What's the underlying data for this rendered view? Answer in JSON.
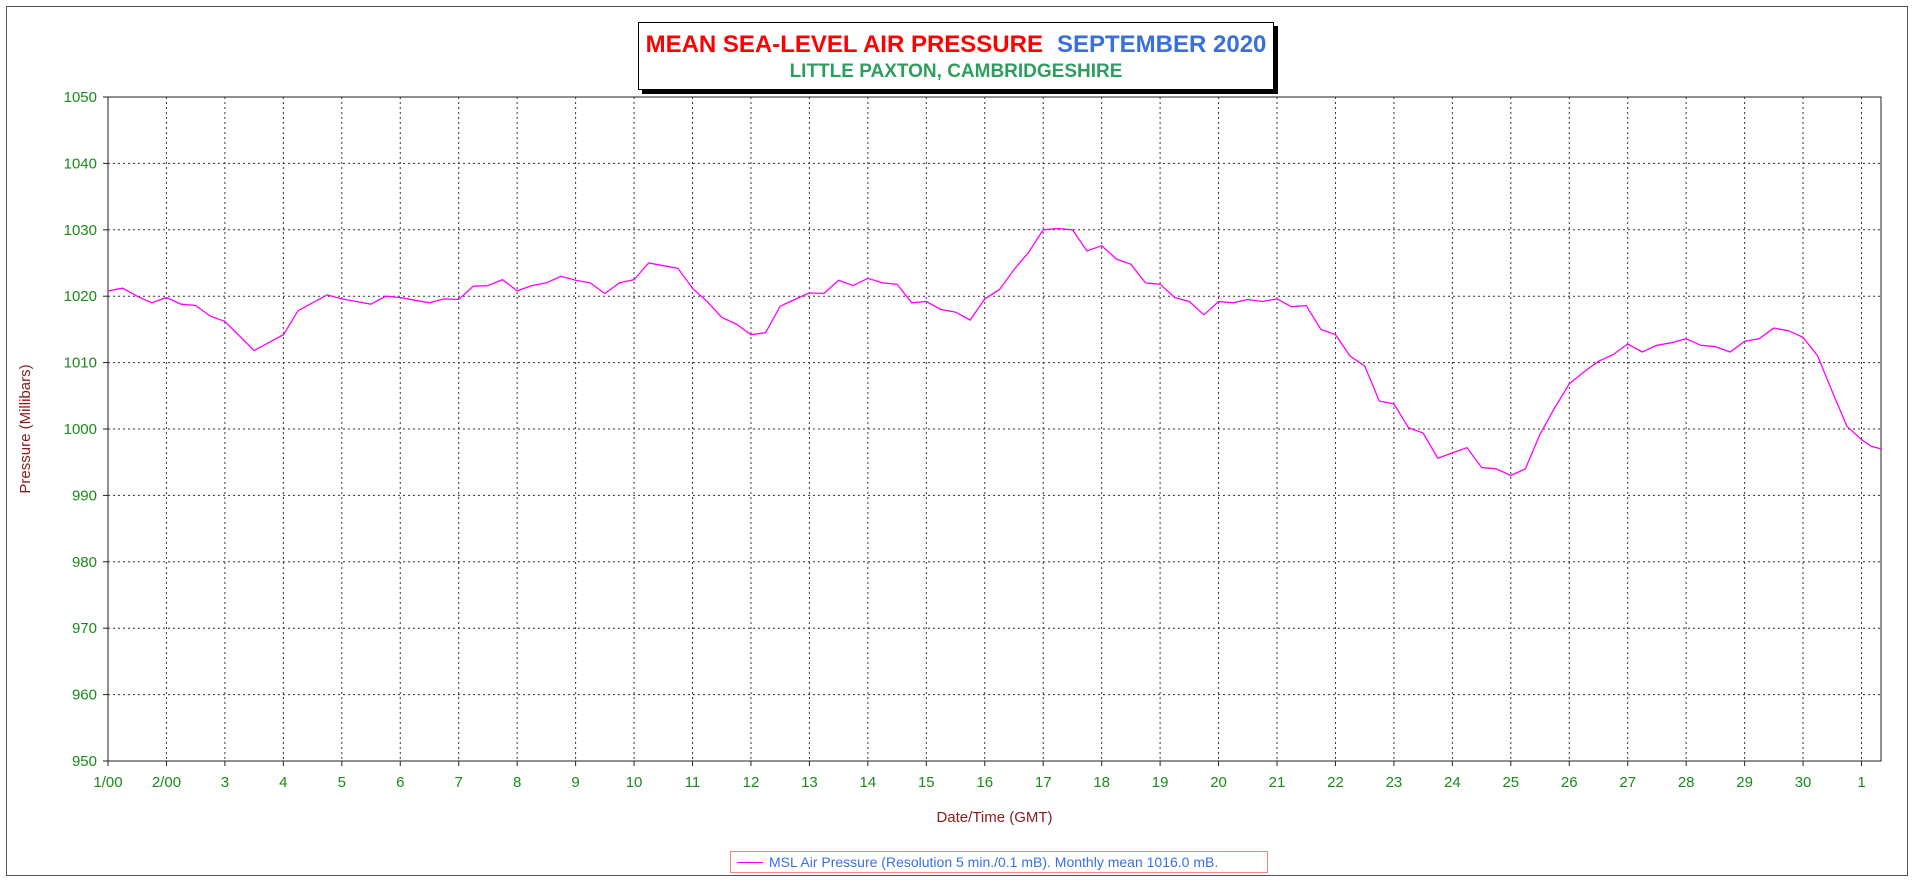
{
  "title": {
    "main": "MEAN SEA-LEVEL AIR PRESSURE",
    "month": "SEPTEMBER 2020",
    "location": "LITTLE PAXTON, CAMBRIDGESHIRE"
  },
  "legend": {
    "label": "MSL Air Pressure (Resolution 5 min./0.1 mB). Monthly mean 1016.0 mB."
  },
  "colors": {
    "line": "#ff00ff",
    "grid": "#333333",
    "tick_text": "#1a8a1a",
    "axis_title": "#8b1a1a",
    "title_red": "#ff0000",
    "title_blue": "#3a6fe0",
    "title_green": "#2e9e5e"
  },
  "chart_data": {
    "type": "line",
    "title": "MEAN SEA-LEVEL AIR PRESSURE SEPTEMBER 2020",
    "subtitle": "LITTLE PAXTON, CAMBRIDGESHIRE",
    "xlabel": "Date/Time (GMT)",
    "ylabel": "Pressure (Millibars)",
    "ylim": [
      950,
      1050
    ],
    "yticks": [
      950,
      960,
      970,
      980,
      990,
      1000,
      1010,
      1020,
      1030,
      1040,
      1050
    ],
    "xlim": [
      "2020-09-01 00:00",
      "2020-10-01 08:00"
    ],
    "xtick_labels": [
      "1/00",
      "2/00",
      "3",
      "4",
      "5",
      "6",
      "7",
      "8",
      "9",
      "10",
      "11",
      "12",
      "13",
      "14",
      "15",
      "16",
      "17",
      "18",
      "19",
      "20",
      "21",
      "22",
      "23",
      "24",
      "25",
      "26",
      "27",
      "28",
      "29",
      "30",
      "1"
    ],
    "grid": true,
    "legend_position": "bottom-center",
    "series": [
      {
        "name": "MSL Air Pressure (Resolution 5 min./0.1 mB). Monthly mean 1016.0 mB.",
        "x": [
          "2020-09-01 00:00",
          "2020-09-01 06:00",
          "2020-09-01 12:00",
          "2020-09-01 18:00",
          "2020-09-02 00:00",
          "2020-09-02 06:00",
          "2020-09-02 12:00",
          "2020-09-02 18:00",
          "2020-09-03 00:00",
          "2020-09-03 06:00",
          "2020-09-03 12:00",
          "2020-09-03 18:00",
          "2020-09-04 00:00",
          "2020-09-04 06:00",
          "2020-09-04 12:00",
          "2020-09-04 18:00",
          "2020-09-05 00:00",
          "2020-09-05 06:00",
          "2020-09-05 12:00",
          "2020-09-05 18:00",
          "2020-09-06 00:00",
          "2020-09-06 06:00",
          "2020-09-06 12:00",
          "2020-09-06 18:00",
          "2020-09-07 00:00",
          "2020-09-07 06:00",
          "2020-09-07 12:00",
          "2020-09-07 18:00",
          "2020-09-08 00:00",
          "2020-09-08 06:00",
          "2020-09-08 12:00",
          "2020-09-08 18:00",
          "2020-09-09 00:00",
          "2020-09-09 06:00",
          "2020-09-09 12:00",
          "2020-09-09 18:00",
          "2020-09-10 00:00",
          "2020-09-10 06:00",
          "2020-09-10 12:00",
          "2020-09-10 18:00",
          "2020-09-11 00:00",
          "2020-09-11 06:00",
          "2020-09-11 12:00",
          "2020-09-11 18:00",
          "2020-09-12 00:00",
          "2020-09-12 06:00",
          "2020-09-12 12:00",
          "2020-09-12 18:00",
          "2020-09-13 00:00",
          "2020-09-13 06:00",
          "2020-09-13 12:00",
          "2020-09-13 18:00",
          "2020-09-14 00:00",
          "2020-09-14 06:00",
          "2020-09-14 12:00",
          "2020-09-14 18:00",
          "2020-09-15 00:00",
          "2020-09-15 06:00",
          "2020-09-15 12:00",
          "2020-09-15 18:00",
          "2020-09-16 00:00",
          "2020-09-16 06:00",
          "2020-09-16 12:00",
          "2020-09-16 18:00",
          "2020-09-17 00:00",
          "2020-09-17 06:00",
          "2020-09-17 12:00",
          "2020-09-17 18:00",
          "2020-09-18 00:00",
          "2020-09-18 06:00",
          "2020-09-18 12:00",
          "2020-09-18 18:00",
          "2020-09-19 00:00",
          "2020-09-19 06:00",
          "2020-09-19 12:00",
          "2020-09-19 18:00",
          "2020-09-20 00:00",
          "2020-09-20 06:00",
          "2020-09-20 12:00",
          "2020-09-20 18:00",
          "2020-09-21 00:00",
          "2020-09-21 06:00",
          "2020-09-21 12:00",
          "2020-09-21 18:00",
          "2020-09-22 00:00",
          "2020-09-22 06:00",
          "2020-09-22 12:00",
          "2020-09-22 18:00",
          "2020-09-23 00:00",
          "2020-09-23 06:00",
          "2020-09-23 12:00",
          "2020-09-23 18:00",
          "2020-09-24 00:00",
          "2020-09-24 06:00",
          "2020-09-24 12:00",
          "2020-09-24 18:00",
          "2020-09-25 00:00",
          "2020-09-25 06:00",
          "2020-09-25 12:00",
          "2020-09-25 18:00",
          "2020-09-26 00:00",
          "2020-09-26 06:00",
          "2020-09-26 12:00",
          "2020-09-26 18:00",
          "2020-09-27 00:00",
          "2020-09-27 06:00",
          "2020-09-27 12:00",
          "2020-09-27 18:00",
          "2020-09-28 00:00",
          "2020-09-28 06:00",
          "2020-09-28 12:00",
          "2020-09-28 18:00",
          "2020-09-29 00:00",
          "2020-09-29 06:00",
          "2020-09-29 12:00",
          "2020-09-29 18:00",
          "2020-09-30 00:00",
          "2020-09-30 06:00",
          "2020-09-30 12:00",
          "2020-09-30 18:00",
          "2020-10-01 00:00",
          "2020-10-01 04:00",
          "2020-10-01 08:00"
        ],
        "y": [
          1020.8,
          1021.2,
          1020.0,
          1019.0,
          1019.8,
          1018.8,
          1018.6,
          1017.0,
          1016.2,
          1014.0,
          1011.8,
          1013.0,
          1014.2,
          1017.8,
          1019.0,
          1020.2,
          1019.6,
          1019.2,
          1018.8,
          1020.0,
          1019.8,
          1019.4,
          1019.0,
          1019.6,
          1019.5,
          1021.5,
          1021.6,
          1022.5,
          1020.8,
          1021.6,
          1022.0,
          1023.0,
          1022.4,
          1022.0,
          1020.4,
          1022.0,
          1022.5,
          1025.0,
          1024.6,
          1024.2,
          1021.2,
          1019.2,
          1016.8,
          1015.8,
          1014.2,
          1014.5,
          1018.5,
          1019.5,
          1020.5,
          1020.4,
          1022.4,
          1021.6,
          1022.7,
          1022.0,
          1021.8,
          1019.0,
          1019.2,
          1018.0,
          1017.6,
          1016.4,
          1019.6,
          1021.0,
          1024.0,
          1026.6,
          1030.0,
          1030.2,
          1030.0,
          1026.8,
          1027.6,
          1025.6,
          1024.8,
          1022.0,
          1021.8,
          1019.8,
          1019.2,
          1017.2,
          1019.2,
          1019.0,
          1019.5,
          1019.2,
          1019.6,
          1018.4,
          1018.6,
          1015.0,
          1014.2,
          1011.0,
          1009.5,
          1004.2,
          1003.8,
          1000.2,
          999.4,
          995.6,
          996.4,
          997.2,
          994.2,
          994.0,
          993.0,
          994.0,
          999.2,
          1003.2,
          1006.8,
          1008.6,
          1010.2,
          1011.2,
          1012.8,
          1011.6,
          1012.6,
          1013.0,
          1013.6,
          1012.6,
          1012.4,
          1011.6,
          1013.2,
          1013.6,
          1015.2,
          1014.8,
          1013.8,
          1011.0,
          1005.6,
          1000.4,
          998.4,
          997.4,
          997.0
        ]
      }
    ]
  }
}
